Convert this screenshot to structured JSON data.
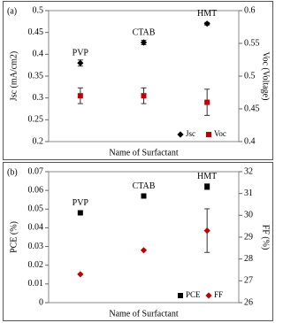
{
  "chart_data": [
    {
      "type": "scatter",
      "panel_label": "(a)",
      "x_label": "Name of Surfactant",
      "y_label": "Jsc (mA/cm2)",
      "y2_label": "Voc (Voltage)",
      "categories": [
        "PVP",
        "CTAB",
        "HMT"
      ],
      "ylim": [
        0.2,
        0.5
      ],
      "yticks": [
        0.2,
        0.25,
        0.3,
        0.35,
        0.4,
        0.45,
        0.5
      ],
      "y2lim": [
        0.4,
        0.6
      ],
      "y2ticks": [
        0.4,
        0.45,
        0.5,
        0.55,
        0.6
      ],
      "legend": "lower right",
      "series": [
        {
          "name": "Jsc",
          "color": "#000000",
          "marker": "diamond",
          "values": [
            0.38,
            0.427,
            0.47
          ],
          "errors": [
            0.007,
            0.005,
            0.003
          ]
        },
        {
          "name": "Voc",
          "color": "#c00000",
          "marker": "square",
          "axis": "y2",
          "values": [
            0.47,
            0.47,
            0.46
          ],
          "errors": [
            0.012,
            0.012,
            0.02
          ]
        }
      ]
    },
    {
      "type": "scatter",
      "panel_label": "(b)",
      "x_label": "Name of Surfactant",
      "y_label": "PCE (%)",
      "y2_label": "FF (%)",
      "categories": [
        "PVP",
        "CTAB",
        "HMT"
      ],
      "ylim": [
        0,
        0.07
      ],
      "yticks": [
        0,
        0.01,
        0.02,
        0.03,
        0.04,
        0.05,
        0.06,
        0.07
      ],
      "y2lim": [
        26,
        32
      ],
      "y2ticks": [
        26,
        27,
        28,
        29,
        30,
        31,
        32
      ],
      "legend": "lower right",
      "series": [
        {
          "name": "PCE",
          "color": "#000000",
          "marker": "square",
          "values": [
            0.048,
            0.057,
            0.062
          ],
          "errors": [
            null,
            null,
            0.0015
          ]
        },
        {
          "name": "FF",
          "color": "#c00000",
          "marker": "diamond",
          "axis": "y2",
          "values": [
            27.3,
            28.4,
            29.3
          ],
          "errors": [
            null,
            null,
            1.0
          ]
        }
      ]
    }
  ]
}
